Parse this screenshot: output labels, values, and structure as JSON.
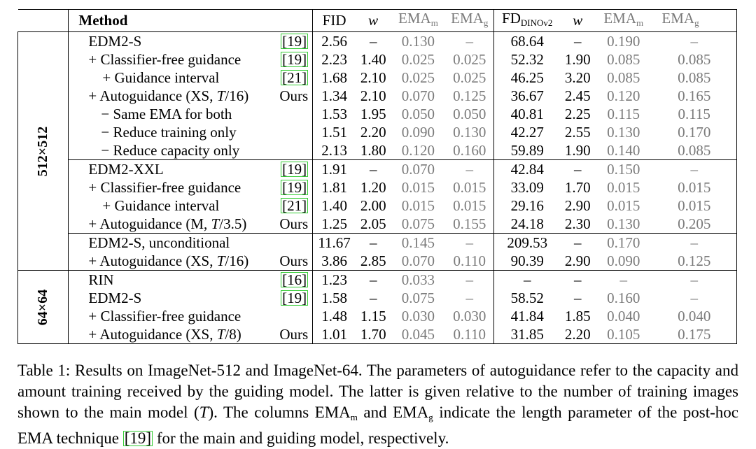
{
  "header": {
    "method": "Method",
    "fid": "FID",
    "w1": "w",
    "emam1": "EMA",
    "emam1_sub": "m",
    "emag1": "EMA",
    "emag1_sub": "g",
    "fd": "FD",
    "fd_sub": "DINOv2",
    "w2": "w",
    "emam2": "EMA",
    "emam2_sub": "m",
    "emag2": "EMA",
    "emag2_sub": "g"
  },
  "groups": {
    "g512": "512×512",
    "g64": "64×64"
  },
  "rows": [
    {
      "method": "EDM2-S",
      "ref": "[19]",
      "fid": "2.56",
      "w1": "–",
      "em1": "0.130",
      "eg1": "–",
      "fd": "68.64",
      "w2": "–",
      "em2": "0.190",
      "eg2": "–"
    },
    {
      "method": "+ Classifier-free guidance",
      "ref": "[19]",
      "fid": "2.23",
      "w1": "1.40",
      "em1": "0.025",
      "eg1": "0.025",
      "fd": "52.32",
      "w2": "1.90",
      "em2": "0.085",
      "eg2": "0.085"
    },
    {
      "method": "+ Guidance interval",
      "ref": "[21]",
      "fid": "1.68",
      "w1": "2.10",
      "em1": "0.025",
      "eg1": "0.025",
      "fd": "46.25",
      "w2": "3.20",
      "em2": "0.085",
      "eg2": "0.085"
    },
    {
      "method_pre": "+ Autoguidance (XS, ",
      "method_var": "T",
      "method_post": "/16)",
      "ref": "Ours",
      "fid": "1.34",
      "w1": "2.10",
      "em1": "0.070",
      "eg1": "0.125",
      "fd": "36.67",
      "w2": "2.45",
      "em2": "0.120",
      "eg2": "0.165"
    },
    {
      "method": "− Same EMA for both",
      "ref": "",
      "fid": "1.53",
      "w1": "1.95",
      "em1": "0.050",
      "eg1": "0.050",
      "fd": "40.81",
      "w2": "2.25",
      "em2": "0.115",
      "eg2": "0.115"
    },
    {
      "method": "− Reduce training only",
      "ref": "",
      "fid": "1.51",
      "w1": "2.20",
      "em1": "0.090",
      "eg1": "0.130",
      "fd": "42.27",
      "w2": "2.55",
      "em2": "0.130",
      "eg2": "0.170"
    },
    {
      "method": "− Reduce capacity only",
      "ref": "",
      "fid": "2.13",
      "w1": "1.80",
      "em1": "0.120",
      "eg1": "0.160",
      "fd": "59.89",
      "w2": "1.90",
      "em2": "0.140",
      "eg2": "0.085"
    },
    {
      "method": "EDM2-XXL",
      "ref": "[19]",
      "fid": "1.91",
      "w1": "–",
      "em1": "0.070",
      "eg1": "–",
      "fd": "42.84",
      "w2": "–",
      "em2": "0.150",
      "eg2": "–"
    },
    {
      "method": "+ Classifier-free guidance",
      "ref": "[19]",
      "fid": "1.81",
      "w1": "1.20",
      "em1": "0.015",
      "eg1": "0.015",
      "fd": "33.09",
      "w2": "1.70",
      "em2": "0.015",
      "eg2": "0.015"
    },
    {
      "method": "+ Guidance interval",
      "ref": "[21]",
      "fid": "1.40",
      "w1": "2.00",
      "em1": "0.015",
      "eg1": "0.015",
      "fd": "29.16",
      "w2": "2.90",
      "em2": "0.015",
      "eg2": "0.015"
    },
    {
      "method_pre": "+ Autoguidance (M, ",
      "method_var": "T",
      "method_post": "/3.5)",
      "ref": "Ours",
      "fid": "1.25",
      "w1": "2.05",
      "em1": "0.075",
      "eg1": "0.155",
      "fd": "24.18",
      "w2": "2.30",
      "em2": "0.130",
      "eg2": "0.205"
    },
    {
      "method": "EDM2-S, unconditional",
      "ref": "",
      "fid": "11.67",
      "w1": "–",
      "em1": "0.145",
      "eg1": "–",
      "fd": "209.53",
      "w2": "–",
      "em2": "0.170",
      "eg2": "–"
    },
    {
      "method_pre": "+ Autoguidance (XS, ",
      "method_var": "T",
      "method_post": "/16)",
      "ref": "Ours",
      "fid": "3.86",
      "w1": "2.85",
      "em1": "0.070",
      "eg1": "0.110",
      "fd": "90.39",
      "w2": "2.90",
      "em2": "0.090",
      "eg2": "0.125"
    },
    {
      "method": "RIN",
      "ref": "[16]",
      "fid": "1.23",
      "w1": "–",
      "em1": "0.033",
      "eg1": "–",
      "fd": "–",
      "w2": "–",
      "em2": "–",
      "eg2": "–"
    },
    {
      "method": "EDM2-S",
      "ref": "[19]",
      "fid": "1.58",
      "w1": "–",
      "em1": "0.075",
      "eg1": "–",
      "fd": "58.52",
      "w2": "–",
      "em2": "0.160",
      "eg2": "–"
    },
    {
      "method": "+ Classifier-free guidance",
      "ref": "",
      "fid": "1.48",
      "w1": "1.15",
      "em1": "0.030",
      "eg1": "0.030",
      "fd": "41.84",
      "w2": "1.85",
      "em2": "0.040",
      "eg2": "0.040"
    },
    {
      "method_pre": "+ Autoguidance (XS, ",
      "method_var": "T",
      "method_post": "/8)",
      "ref": "Ours",
      "fid": "1.01",
      "w1": "1.70",
      "em1": "0.045",
      "eg1": "0.110",
      "fd": "31.85",
      "w2": "2.20",
      "em2": "0.105",
      "eg2": "0.175"
    }
  ],
  "caption": {
    "p1": "Table 1: Results on ImageNet-512 and ImageNet-64. The parameters of autoguidance refer to the capacity and amount training received by the guiding model. The latter is given relative to the number of training images shown to the main model (",
    "var": "T",
    "p2": "). The columns EMA",
    "sub_m": "m",
    "p3": " and EMA",
    "sub_g": "g",
    "p4": " indicate the length parameter of the post-hoc EMA technique ",
    "cite": "[19]",
    "p5": " for the main and guiding model, respectively."
  }
}
